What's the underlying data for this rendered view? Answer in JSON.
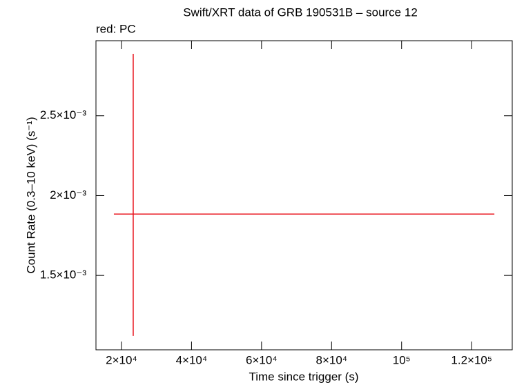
{
  "chart_data": {
    "type": "scatter",
    "title": "Swift/XRT data of GRB 190531B – source 12",
    "annotation": "red: PC",
    "xlabel": "Time since trigger (s)",
    "ylabel": "Count Rate (0.3–10 keV) (s⁻¹)",
    "xlim": [
      12710,
      131600
    ],
    "ylim": [
      0.001034,
      0.00297
    ],
    "xticks": [
      {
        "value": 20000,
        "label": "2×10⁴"
      },
      {
        "value": 40000,
        "label": "4×10⁴"
      },
      {
        "value": 60000,
        "label": "6×10⁴"
      },
      {
        "value": 80000,
        "label": "8×10⁴"
      },
      {
        "value": 100000,
        "label": "10⁵"
      },
      {
        "value": 120000,
        "label": "1.2×10⁵"
      }
    ],
    "yticks": [
      {
        "value": 0.0015,
        "label": "1.5×10⁻³"
      },
      {
        "value": 0.002,
        "label": "2×10⁻³"
      },
      {
        "value": 0.0025,
        "label": "2.5×10⁻³"
      }
    ],
    "series": [
      {
        "color": "#e8101a",
        "x": [
          23350
        ],
        "x_err_minus": [
          5520
        ],
        "x_err_plus": [
          103150
        ],
        "values": [
          0.001884
        ],
        "y_err_minus": [
          0.000763
        ],
        "y_err_plus": [
          0.001004
        ]
      }
    ]
  }
}
